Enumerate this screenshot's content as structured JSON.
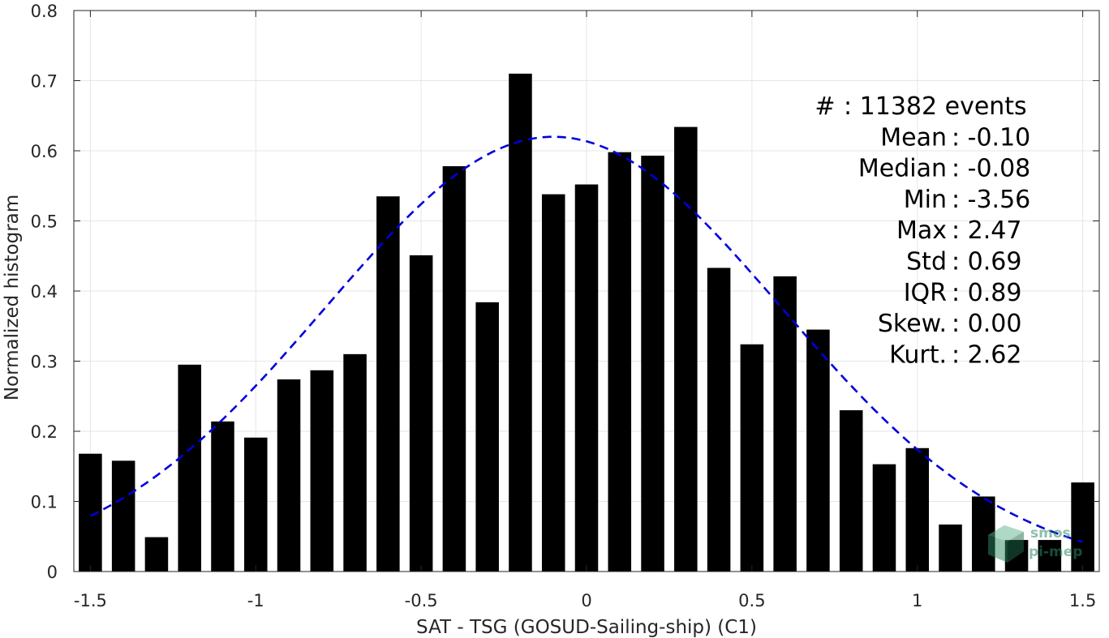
{
  "chart_data": {
    "type": "bar",
    "xlabel": "SAT - TSG (GOSUD-Sailing-ship) (C1)",
    "ylabel": "Normalized histogram",
    "xlim": [
      -1.55,
      1.55
    ],
    "ylim": [
      0,
      0.8
    ],
    "xticks": [
      -1.5,
      -1,
      -0.5,
      0,
      0.5,
      1,
      1.5
    ],
    "xtick_labels": [
      "-1.5",
      "-1",
      "-0.5",
      "0",
      "0.5",
      "1",
      "1.5"
    ],
    "yticks": [
      0,
      0.1,
      0.2,
      0.3,
      0.4,
      0.5,
      0.6,
      0.7,
      0.8
    ],
    "ytick_labels": [
      "0",
      "0.1",
      "0.2",
      "0.3",
      "0.4",
      "0.5",
      "0.6",
      "0.7",
      "0.8"
    ],
    "grid": true,
    "bar_color": "#000000",
    "bar_width": 0.07,
    "bins": [
      -1.5,
      -1.4,
      -1.3,
      -1.2,
      -1.1,
      -1.0,
      -0.9,
      -0.8,
      -0.7,
      -0.6,
      -0.5,
      -0.4,
      -0.3,
      -0.2,
      -0.1,
      0.0,
      0.1,
      0.2,
      0.3,
      0.4,
      0.5,
      0.6,
      0.7,
      0.8,
      0.9,
      1.0,
      1.1,
      1.2,
      1.3,
      1.4,
      1.5
    ],
    "values": [
      0.168,
      0.158,
      0.049,
      0.295,
      0.214,
      0.191,
      0.274,
      0.287,
      0.31,
      0.535,
      0.451,
      0.578,
      0.384,
      0.71,
      0.538,
      0.552,
      0.598,
      0.593,
      0.634,
      0.433,
      0.324,
      0.421,
      0.345,
      0.23,
      0.153,
      0.176,
      0.067,
      0.107,
      0.045,
      0.045,
      0.127
    ],
    "fit_curve": {
      "type": "gaussian",
      "color": "#0000dd",
      "style": "dashed",
      "mean": -0.1,
      "peak": 0.62,
      "x_range": [
        -1.5,
        1.5
      ]
    },
    "stats": [
      {
        "label": "#",
        "value": ": 11382 events"
      },
      {
        "label": "Mean",
        "value": ": -0.10"
      },
      {
        "label": "Median",
        "value": ": -0.08"
      },
      {
        "label": "Min",
        "value": ": -3.56"
      },
      {
        "label": "Max",
        "value": ": 2.47"
      },
      {
        "label": "Std",
        "value": ": 0.69"
      },
      {
        "label": "IQR",
        "value": ": 0.89"
      },
      {
        "label": "Skew.",
        "value": ": 0.00"
      },
      {
        "label": "Kurt.",
        "value": ": 2.62"
      }
    ]
  },
  "watermark": {
    "line1": "smos",
    "line2": "pi-mep",
    "color": "#2f8a64",
    "icon": "cube-logo-icon"
  }
}
